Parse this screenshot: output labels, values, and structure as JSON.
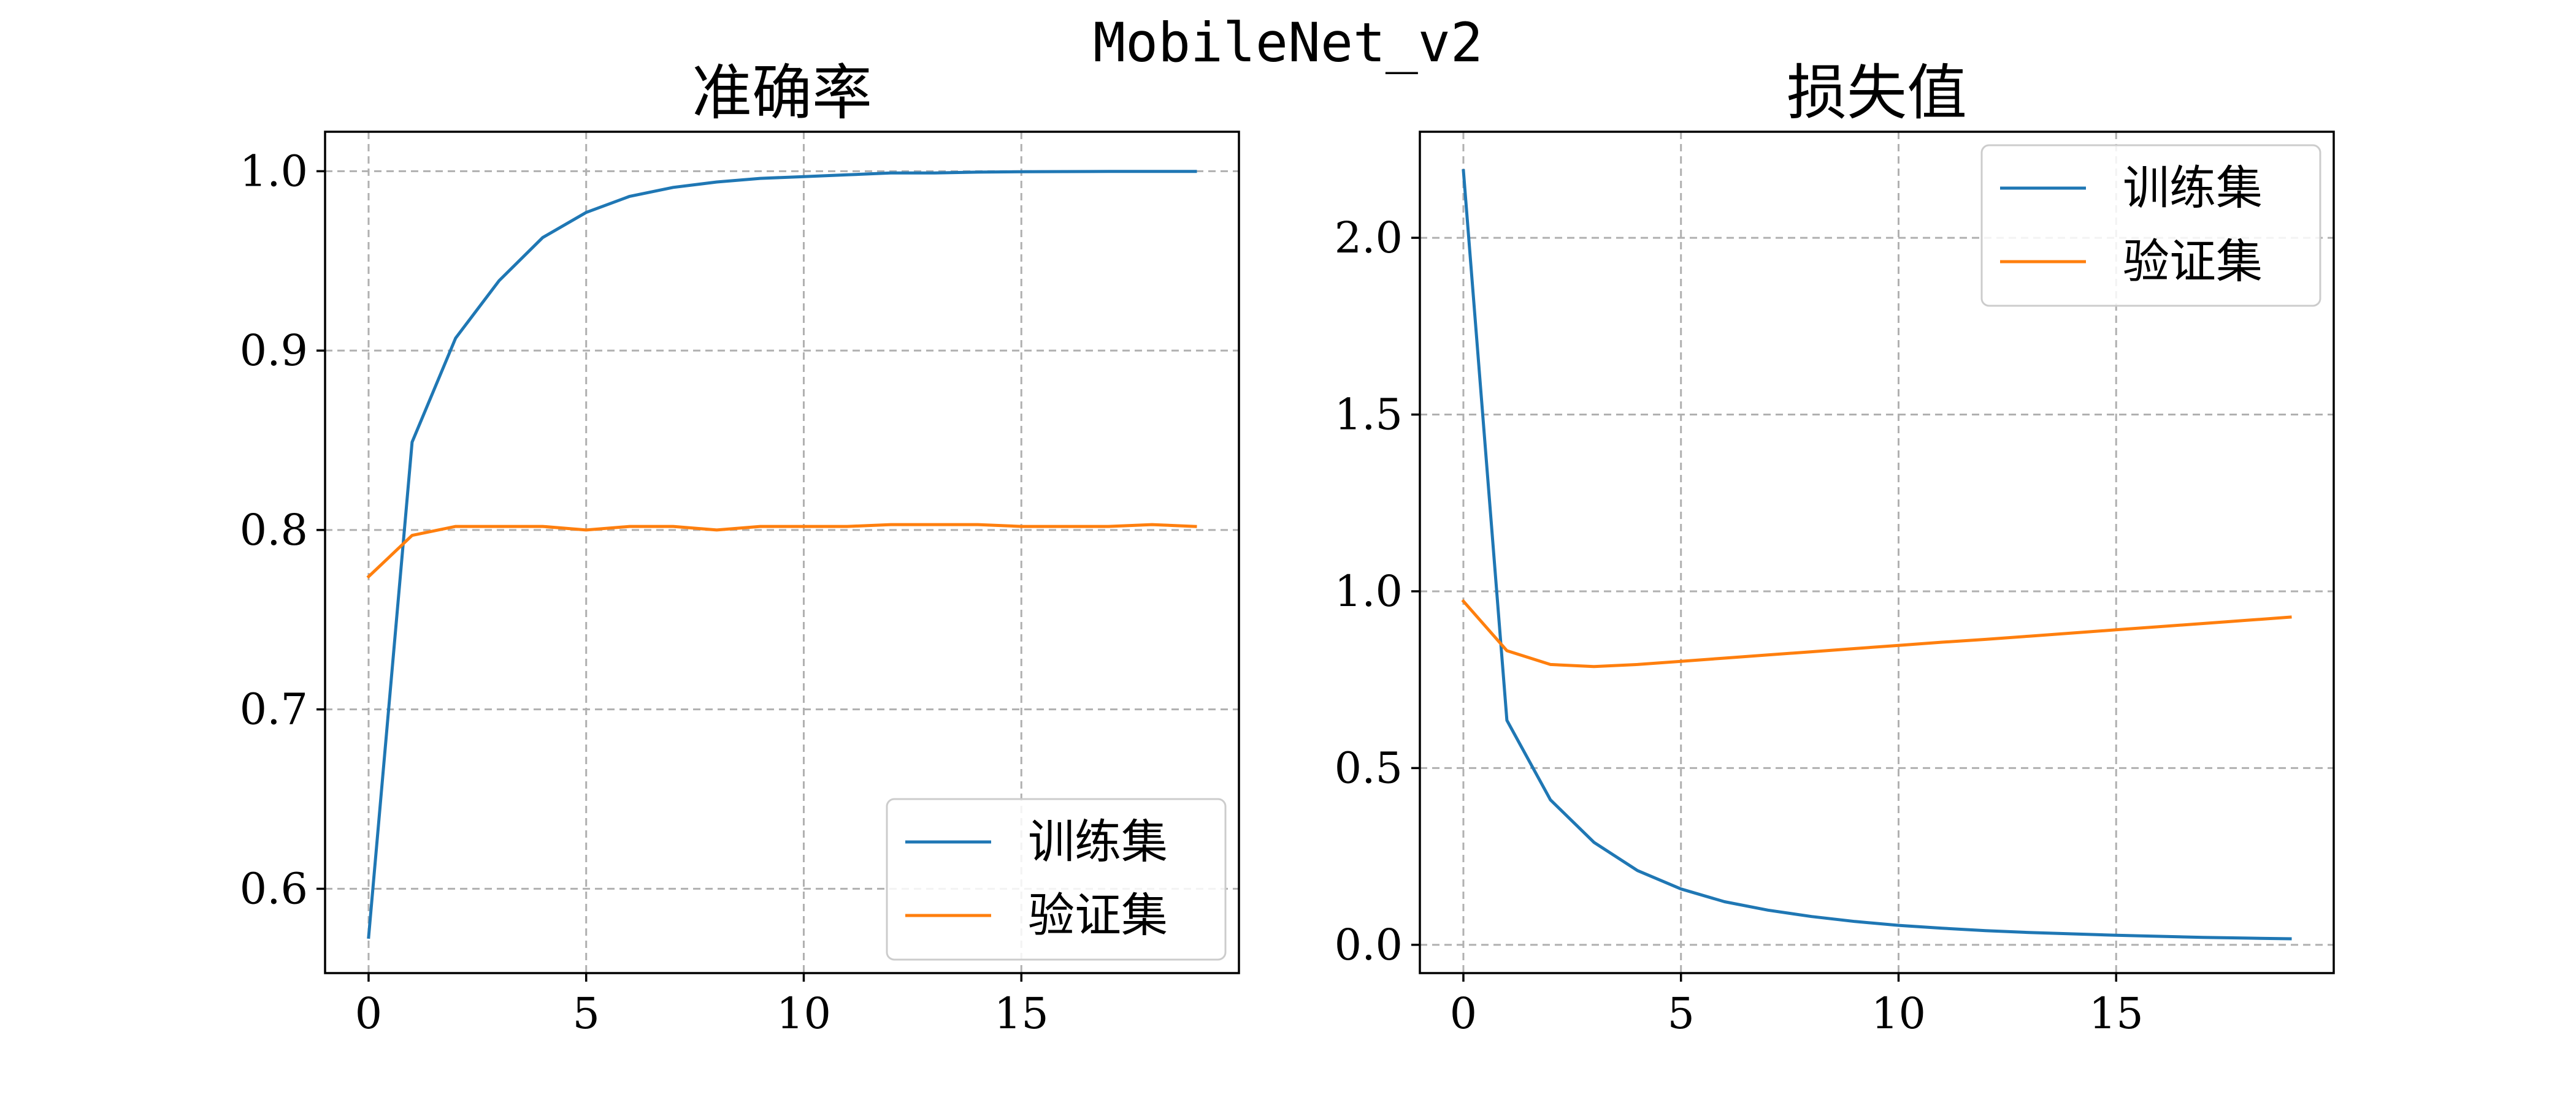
{
  "figure_title": "MobileNet_v2",
  "colors": {
    "train": "#1f77b4",
    "val": "#ff7f0e"
  },
  "chart_data": [
    {
      "type": "line",
      "title": "准确率",
      "xlabel": "",
      "ylabel": "",
      "xlim": [
        -1.0,
        20.0
      ],
      "ylim": [
        0.553,
        1.022
      ],
      "xticks": [
        0,
        5,
        10,
        15
      ],
      "yticks": [
        0.6,
        0.7,
        0.8,
        0.9,
        1.0
      ],
      "ytick_labels": [
        "0.6",
        "0.7",
        "0.8",
        "0.9",
        "1.0"
      ],
      "grid": true,
      "legend_position": "lower-right",
      "x": [
        0,
        1,
        2,
        3,
        4,
        5,
        6,
        7,
        8,
        9,
        10,
        11,
        12,
        13,
        14,
        15,
        16,
        17,
        18,
        19
      ],
      "series": [
        {
          "name": "训练集",
          "color": "#1f77b4",
          "values": [
            0.573,
            0.849,
            0.907,
            0.939,
            0.963,
            0.977,
            0.986,
            0.991,
            0.994,
            0.996,
            0.997,
            0.998,
            0.999,
            0.999,
            0.9995,
            0.9997,
            0.9998,
            0.9999,
            0.9999,
            0.9999
          ]
        },
        {
          "name": "验证集",
          "color": "#ff7f0e",
          "values": [
            0.774,
            0.797,
            0.802,
            0.802,
            0.802,
            0.8,
            0.802,
            0.802,
            0.8,
            0.802,
            0.802,
            0.802,
            0.803,
            0.803,
            0.803,
            0.802,
            0.802,
            0.802,
            0.803,
            0.802
          ]
        }
      ]
    },
    {
      "type": "line",
      "title": "损失值",
      "xlabel": "",
      "ylabel": "",
      "xlim": [
        -1.0,
        20.0
      ],
      "ylim": [
        -0.08,
        2.3
      ],
      "xticks": [
        0,
        5,
        10,
        15
      ],
      "yticks": [
        0.0,
        0.5,
        1.0,
        1.5,
        2.0
      ],
      "ytick_labels": [
        "0.0",
        "0.5",
        "1.0",
        "1.5",
        "2.0"
      ],
      "grid": true,
      "legend_position": "upper-right",
      "x": [
        0,
        1,
        2,
        3,
        4,
        5,
        6,
        7,
        8,
        9,
        10,
        11,
        12,
        13,
        14,
        15,
        16,
        17,
        18,
        19
      ],
      "series": [
        {
          "name": "训练集",
          "color": "#1f77b4",
          "values": [
            2.19,
            0.635,
            0.41,
            0.29,
            0.21,
            0.158,
            0.122,
            0.098,
            0.08,
            0.066,
            0.055,
            0.047,
            0.04,
            0.035,
            0.031,
            0.027,
            0.024,
            0.021,
            0.019,
            0.017
          ]
        },
        {
          "name": "验证集",
          "color": "#ff7f0e",
          "values": [
            0.972,
            0.832,
            0.793,
            0.787,
            0.793,
            0.802,
            0.811,
            0.82,
            0.829,
            0.838,
            0.847,
            0.856,
            0.864,
            0.873,
            0.882,
            0.891,
            0.9,
            0.909,
            0.918,
            0.927
          ]
        }
      ]
    }
  ]
}
